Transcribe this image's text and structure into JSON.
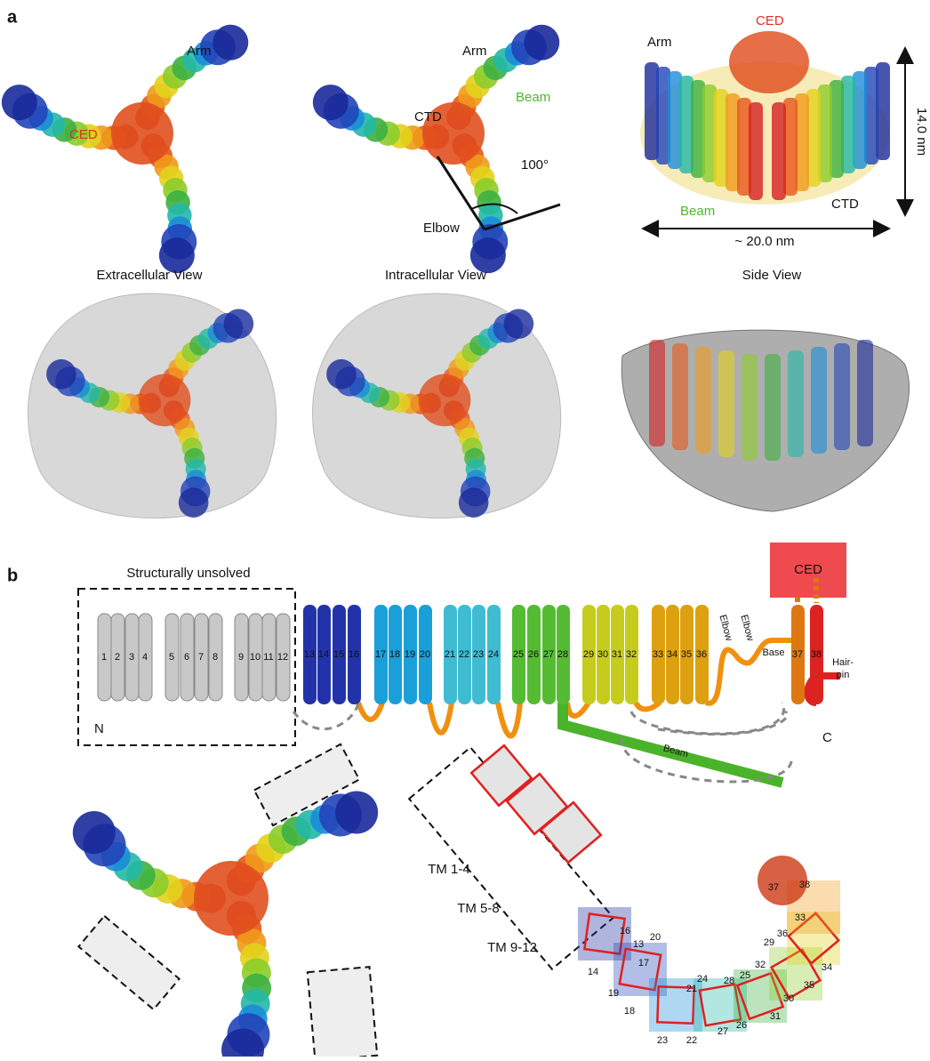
{
  "panel_a": {
    "label": "a",
    "extracellular": {
      "arm": "Arm",
      "ced": "CED"
    },
    "intracellular": {
      "arm": "Arm",
      "ctd": "CTD",
      "beam": "Beam",
      "angle": "100°",
      "elbow": "Elbow"
    },
    "side": {
      "ced": "CED",
      "arm": "Arm",
      "height": "14.0 nm",
      "beam": "Beam",
      "ctd": "CTD",
      "width": "~ 20.0 nm"
    },
    "captions": [
      "Extracellular View",
      "Intracellular View",
      "Side View"
    ]
  },
  "panel_b": {
    "label": "b",
    "unsolved": "Structurally unsolved",
    "helices": [
      "1",
      "2",
      "3",
      "4",
      "5",
      "6",
      "7",
      "8",
      "9",
      "10",
      "11",
      "12",
      "13",
      "14",
      "15",
      "16",
      "17",
      "18",
      "19",
      "20",
      "21",
      "22",
      "23",
      "24",
      "25",
      "26",
      "27",
      "28",
      "29",
      "30",
      "31",
      "32",
      "33",
      "34",
      "35",
      "36",
      "37",
      "38"
    ],
    "n_term": "N",
    "c_term": "C",
    "ced": "CED",
    "elbow": [
      "Elbow",
      "Elbow"
    ],
    "base": "Base",
    "hairpin": [
      "Hair-",
      "pin"
    ],
    "beam": "Beam",
    "tm_groups": [
      "TM 1-4",
      "TM 5-8",
      "TM 9-12"
    ],
    "structure_labels": [
      "16",
      "13",
      "20",
      "17",
      "14",
      "19",
      "18",
      "21",
      "24",
      "28",
      "25",
      "32",
      "29",
      "36",
      "33",
      "34",
      "35",
      "30",
      "31",
      "26",
      "27",
      "22",
      "23",
      "37",
      "38"
    ]
  }
}
